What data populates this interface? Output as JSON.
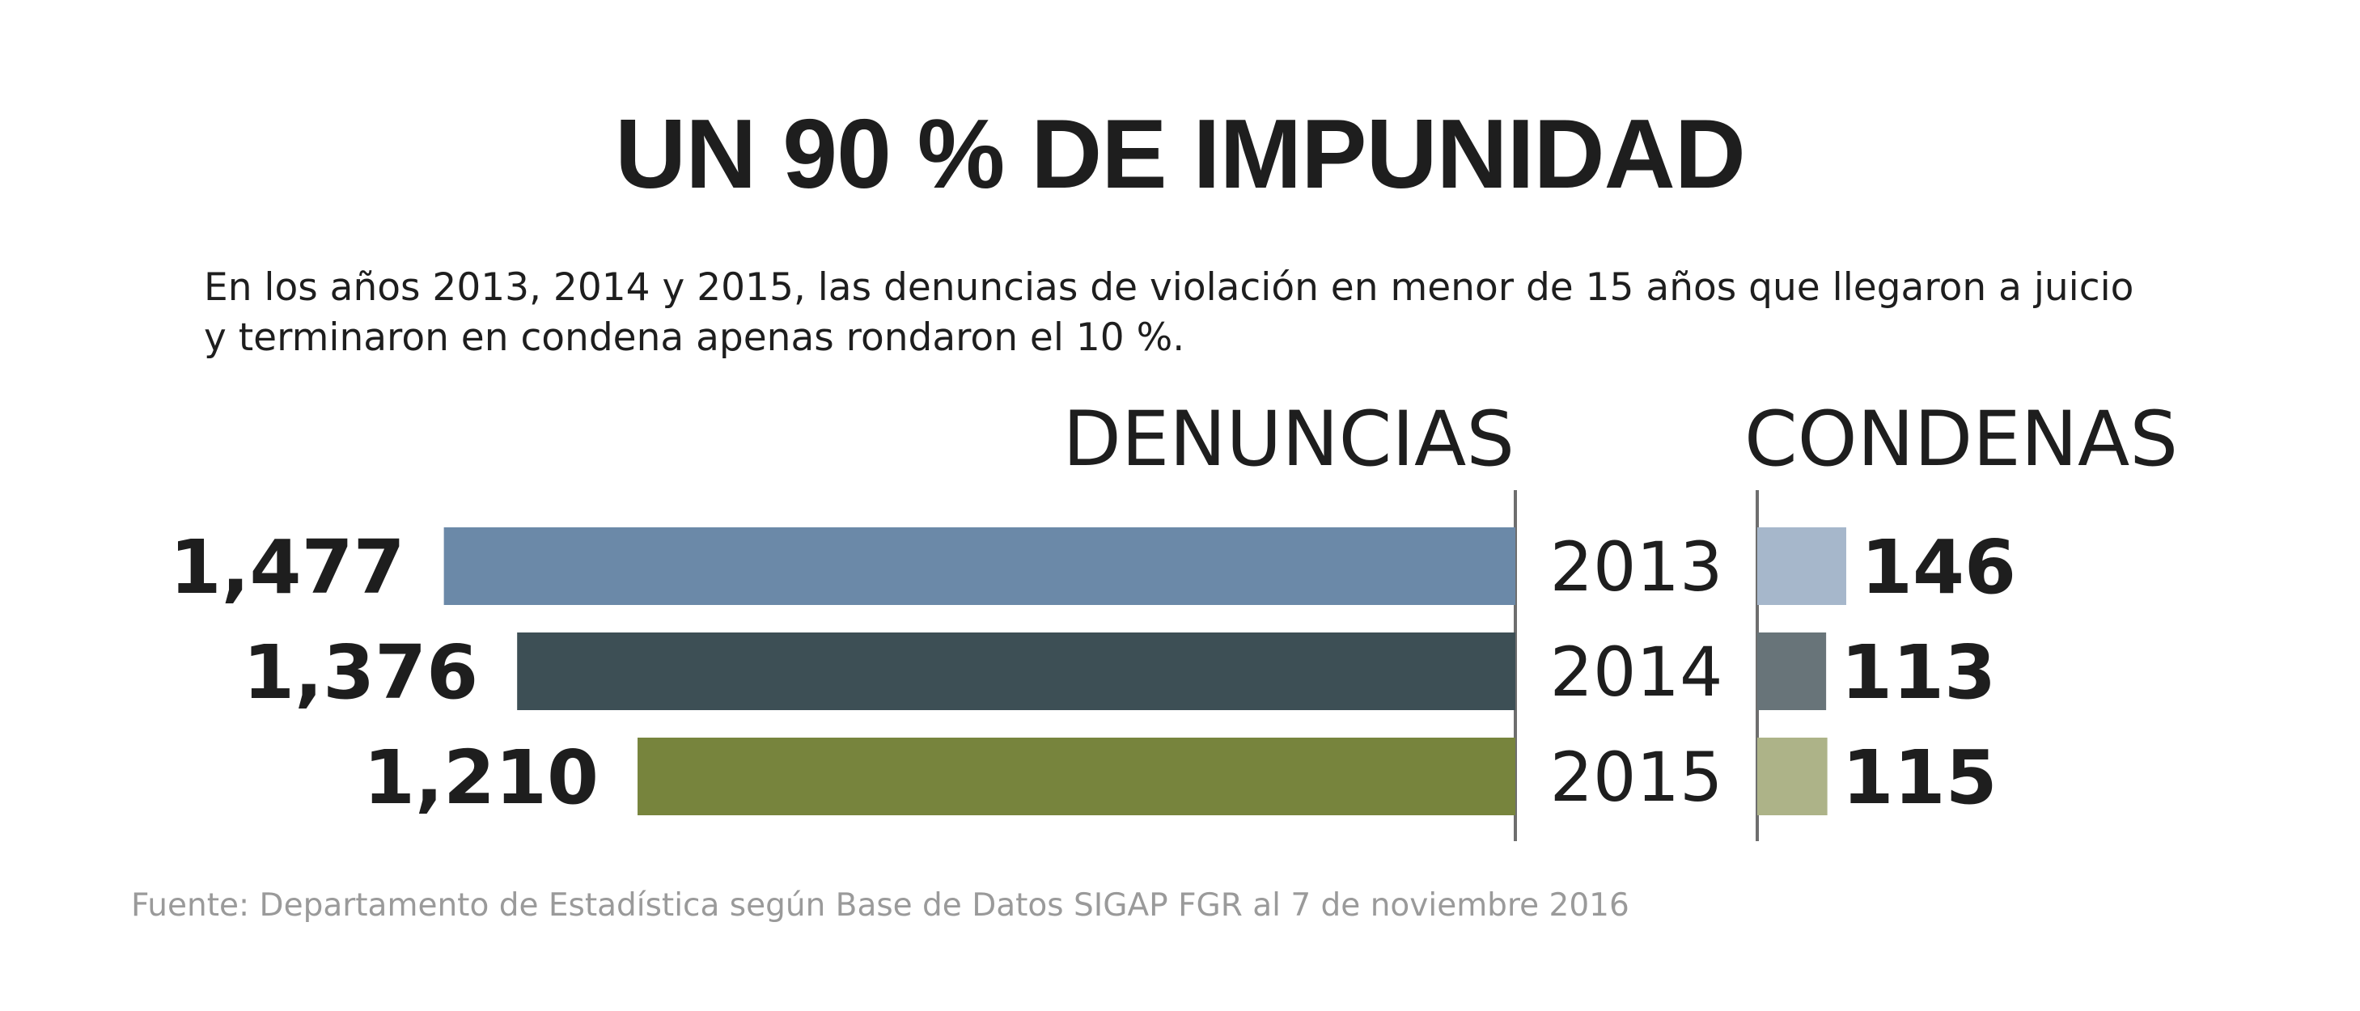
{
  "title": "UN 90 % DE IMPUNIDAD",
  "subtitle": "En los años 2013, 2014 y 2015, las denuncias de violación en menor de 15 años que llegaron a juicio y terminaron en condena apenas rondaron el 10 %.",
  "source": "Fuente: Departamento de Estadística según Base de Datos SIGAP FGR al 7 de noviembre 2016",
  "chart_data": {
    "type": "bar",
    "orientation": "horizontal",
    "categories": [
      "2013",
      "2014",
      "2015"
    ],
    "series": [
      {
        "name": "DENUNCIAS",
        "values": [
          1477,
          1376,
          1210
        ],
        "labels": [
          "1,477",
          "1,376",
          "1,210"
        ],
        "colors": [
          "#6b89a8",
          "#3d4f55",
          "#77843d"
        ],
        "direction": "leftward"
      },
      {
        "name": "CONDENAS",
        "values": [
          146,
          113,
          115
        ],
        "labels": [
          "146",
          "113",
          "115"
        ],
        "colors": [
          "#a6b7cb",
          "#687479",
          "#adb388"
        ],
        "direction": "rightward"
      }
    ],
    "grid": false,
    "legend": "none"
  }
}
